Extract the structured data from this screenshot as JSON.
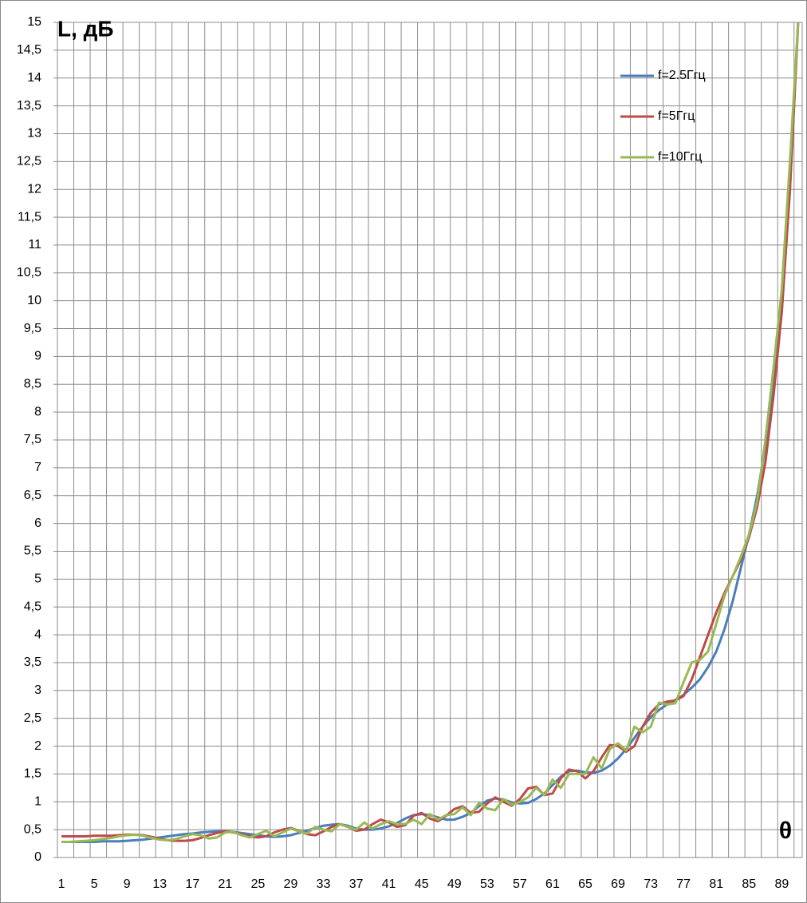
{
  "chart_data": {
    "type": "line",
    "y_label": "L, дБ",
    "x_label": "θ",
    "categories": [
      1,
      null,
      null,
      null,
      5,
      null,
      null,
      null,
      9,
      null,
      null,
      null,
      13,
      null,
      null,
      null,
      17,
      null,
      null,
      null,
      21,
      null,
      null,
      null,
      25,
      null,
      null,
      null,
      29,
      null,
      null,
      null,
      33,
      null,
      null,
      null,
      37,
      null,
      null,
      null,
      41,
      null,
      null,
      null,
      45,
      null,
      null,
      null,
      49,
      null,
      null,
      null,
      53,
      null,
      null,
      null,
      57,
      null,
      null,
      null,
      61,
      null,
      null,
      null,
      65,
      null,
      null,
      null,
      69,
      null,
      null,
      null,
      73,
      null,
      null,
      null,
      77,
      null,
      null,
      null,
      81,
      null,
      null,
      null,
      85,
      null,
      null,
      null,
      89,
      null,
      null
    ],
    "series": [
      {
        "name": "f=2.5Ггц",
        "color": "#4a7ebb",
        "values": [
          0.28,
          0.28,
          0.28,
          0.28,
          0.28,
          0.29,
          0.29,
          0.29,
          0.3,
          0.31,
          0.32,
          0.34,
          0.36,
          0.38,
          0.4,
          0.42,
          0.43,
          0.45,
          0.46,
          0.47,
          0.47,
          0.46,
          0.44,
          0.42,
          0.4,
          0.38,
          0.37,
          0.38,
          0.4,
          0.44,
          0.48,
          0.53,
          0.57,
          0.59,
          0.6,
          0.57,
          0.52,
          0.5,
          0.5,
          0.52,
          0.56,
          0.62,
          0.7,
          0.76,
          0.78,
          0.76,
          0.72,
          0.68,
          0.68,
          0.73,
          0.8,
          0.92,
          1.02,
          1.06,
          1.04,
          0.99,
          0.97,
          0.98,
          1.05,
          1.15,
          1.3,
          1.45,
          1.55,
          1.56,
          1.53,
          1.52,
          1.56,
          1.65,
          1.78,
          1.95,
          2.15,
          2.35,
          2.52,
          2.65,
          2.75,
          2.83,
          2.92,
          3.05,
          3.2,
          3.42,
          3.7,
          4.1,
          4.6,
          5.2,
          5.8,
          6.5,
          7.4,
          8.5,
          9.8,
          12,
          15
        ]
      },
      {
        "name": "f=5Ггц",
        "color": "#be4b48",
        "values": [
          0.38,
          0.38,
          0.38,
          0.38,
          0.39,
          0.39,
          0.39,
          0.4,
          0.41,
          0.41,
          0.4,
          0.37,
          0.34,
          0.31,
          0.3,
          0.3,
          0.31,
          0.35,
          0.4,
          0.44,
          0.47,
          0.45,
          0.42,
          0.38,
          0.36,
          0.38,
          0.45,
          0.5,
          0.53,
          0.48,
          0.42,
          0.4,
          0.47,
          0.55,
          0.6,
          0.55,
          0.48,
          0.5,
          0.6,
          0.68,
          0.63,
          0.55,
          0.58,
          0.75,
          0.8,
          0.7,
          0.65,
          0.75,
          0.87,
          0.92,
          0.8,
          0.82,
          0.97,
          1.08,
          1.0,
          0.93,
          1.05,
          1.24,
          1.27,
          1.12,
          1.15,
          1.42,
          1.58,
          1.55,
          1.42,
          1.55,
          1.8,
          2.02,
          2.0,
          1.9,
          2.0,
          2.35,
          2.6,
          2.75,
          2.8,
          2.82,
          2.9,
          3.2,
          3.6,
          4.0,
          4.4,
          4.75,
          5.05,
          5.35,
          5.75,
          6.3,
          7.1,
          8.3,
          9.8,
          12,
          15
        ]
      },
      {
        "name": "f=10Ггц",
        "color": "#98b954",
        "values": [
          0.28,
          0.28,
          0.29,
          0.3,
          0.31,
          0.33,
          0.35,
          0.38,
          0.4,
          0.41,
          0.39,
          0.35,
          0.32,
          0.31,
          0.33,
          0.38,
          0.42,
          0.4,
          0.34,
          0.36,
          0.45,
          0.46,
          0.4,
          0.36,
          0.42,
          0.48,
          0.38,
          0.45,
          0.52,
          0.47,
          0.43,
          0.55,
          0.5,
          0.47,
          0.6,
          0.55,
          0.5,
          0.63,
          0.52,
          0.6,
          0.65,
          0.6,
          0.6,
          0.68,
          0.6,
          0.78,
          0.68,
          0.76,
          0.78,
          0.9,
          0.76,
          0.98,
          0.88,
          0.85,
          1.05,
          0.95,
          1.0,
          1.08,
          1.25,
          1.12,
          1.4,
          1.25,
          1.5,
          1.5,
          1.5,
          1.8,
          1.6,
          1.95,
          2.05,
          1.92,
          2.35,
          2.25,
          2.35,
          2.78,
          2.75,
          2.77,
          3.15,
          3.5,
          3.55,
          3.7,
          4.2,
          4.7,
          5.05,
          5.4,
          5.8,
          6.4,
          7.5,
          8.8,
          10.2,
          12.5,
          15
        ]
      }
    ],
    "ylim": [
      0,
      15
    ],
    "yticks": [
      0,
      {
        "value": 0.5,
        "label": "0,5"
      },
      1,
      {
        "value": 1.5,
        "label": "1,5"
      },
      2,
      {
        "value": 2.5,
        "label": "2,5"
      },
      3,
      {
        "value": 3.5,
        "label": "3,5"
      },
      4,
      {
        "value": 4.5,
        "label": "4,5"
      },
      5,
      {
        "value": 5.5,
        "label": "5,5"
      },
      6,
      {
        "value": 6.5,
        "label": "6,5"
      },
      7,
      {
        "value": 7.5,
        "label": "7,5"
      },
      8,
      {
        "value": 8.5,
        "label": "8,5"
      },
      9,
      {
        "value": 9.5,
        "label": "9,5"
      },
      10,
      {
        "value": 10.5,
        "label": "10,5"
      },
      11,
      {
        "value": 11.5,
        "label": "11,5"
      },
      12,
      {
        "value": 12.5,
        "label": "12,5"
      },
      13,
      {
        "value": 13.5,
        "label": "13,5"
      },
      14,
      {
        "value": 14.5,
        "label": "14,5"
      },
      15
    ],
    "grid": true,
    "legend": "top-right"
  }
}
